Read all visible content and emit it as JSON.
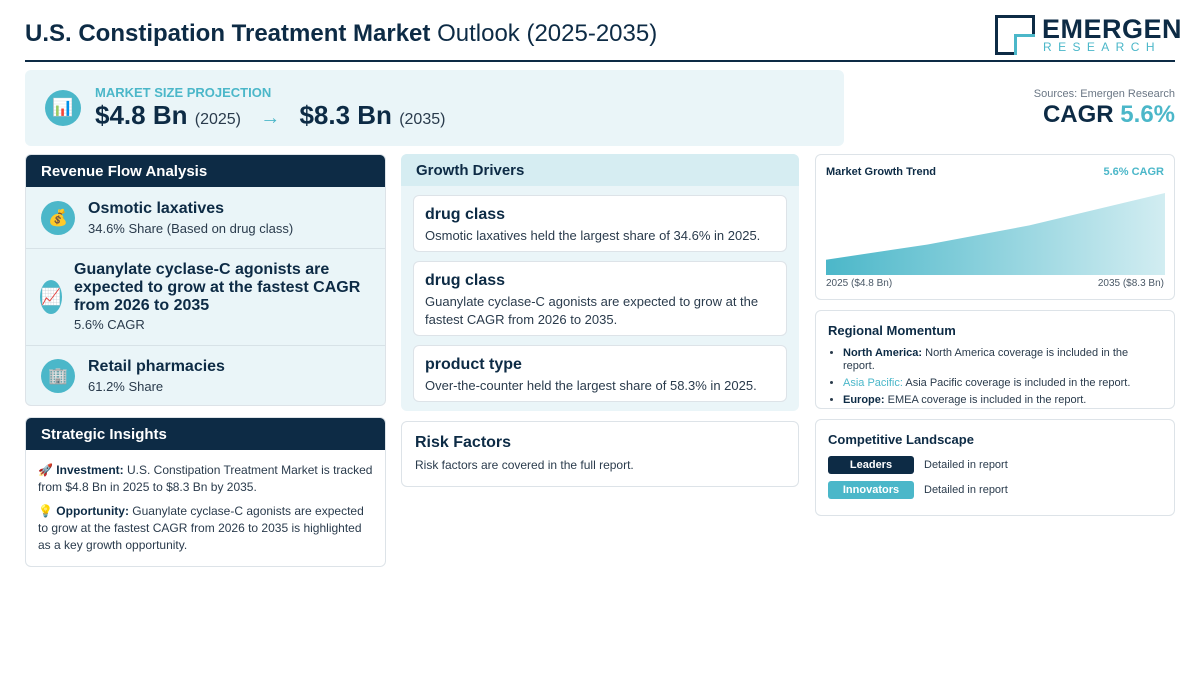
{
  "header": {
    "title_bold": "U.S. Constipation Treatment Market",
    "title_light": "Outlook (2025-2035)",
    "logo_main": "EMERGEN",
    "logo_sub": "RESEARCH"
  },
  "projection": {
    "icon": "bar-chart-icon",
    "label": "MARKET SIZE PROJECTION",
    "start_value": "$4.8 Bn",
    "start_year": "(2025)",
    "arrow": "→",
    "end_value": "$8.3 Bn",
    "end_year": "(2035)"
  },
  "cagr": {
    "sources": "Sources: Emergen Research",
    "label": "CAGR",
    "value": "5.6%"
  },
  "revenue": {
    "title": "Revenue Flow Analysis",
    "items": [
      {
        "icon": "money-bag-icon",
        "name": "Osmotic laxatives",
        "sub": "34.6% Share (Based on drug class)"
      },
      {
        "icon": "chart-up-icon",
        "name": "Guanylate cyclase-C agonists are expected to grow at the fastest CAGR from 2026 to 2035",
        "sub": "5.6% CAGR"
      },
      {
        "icon": "building-icon",
        "name": "Retail pharmacies",
        "sub": "61.2% Share"
      }
    ]
  },
  "insights": {
    "title": "Strategic Insights",
    "investment_label": "Investment:",
    "investment_text": "U.S. Constipation Treatment Market is tracked from $4.8 Bn in 2025 to $8.3 Bn by 2035.",
    "opportunity_label": "Opportunity:",
    "opportunity_text": "Guanylate cyclase-C agonists are expected to grow at the fastest CAGR from 2026 to 2035 is highlighted as a key growth opportunity."
  },
  "drivers": {
    "title": "Growth Drivers",
    "cards": [
      {
        "title": "drug class",
        "text": "Osmotic laxatives held the largest share of 34.6% in 2025."
      },
      {
        "title": "drug class",
        "text": "Guanylate cyclase-C agonists are expected to grow at the fastest CAGR from 2026 to 2035."
      },
      {
        "title": "product type",
        "text": "Over-the-counter held the largest share of 58.3% in 2025."
      }
    ]
  },
  "risk": {
    "title": "Risk Factors",
    "text": "Risk factors are covered in the full report."
  },
  "chart_data": {
    "type": "area",
    "title": "Market Growth Trend",
    "annotation": "5.6% CAGR",
    "x": [
      2025,
      2028,
      2031,
      2035
    ],
    "values": [
      4.8,
      5.6,
      6.6,
      8.3
    ],
    "x_start_label": "2025 ($4.8 Bn)",
    "x_end_label": "2035 ($8.3 Bn)",
    "ylim": [
      4.0,
      8.3
    ],
    "grid": false,
    "fill_color": "#4bb7c9"
  },
  "region": {
    "title": "Regional Momentum",
    "items": [
      {
        "name": "North America:",
        "text": "North America coverage is included in the report."
      },
      {
        "name": "Asia Pacific:",
        "text": "Asia Pacific coverage is included in the report."
      },
      {
        "name": "Europe:",
        "text": "EMEA coverage is included in the report."
      }
    ]
  },
  "competitive": {
    "title": "Competitive Landscape",
    "rows": [
      {
        "badge": "Leaders",
        "text": "Detailed in report"
      },
      {
        "badge": "Innovators",
        "text": "Detailed in report"
      }
    ]
  },
  "colors": {
    "navy": "#0d2b45",
    "teal": "#4bb7c9",
    "light_bg": "#eaf5f8"
  }
}
